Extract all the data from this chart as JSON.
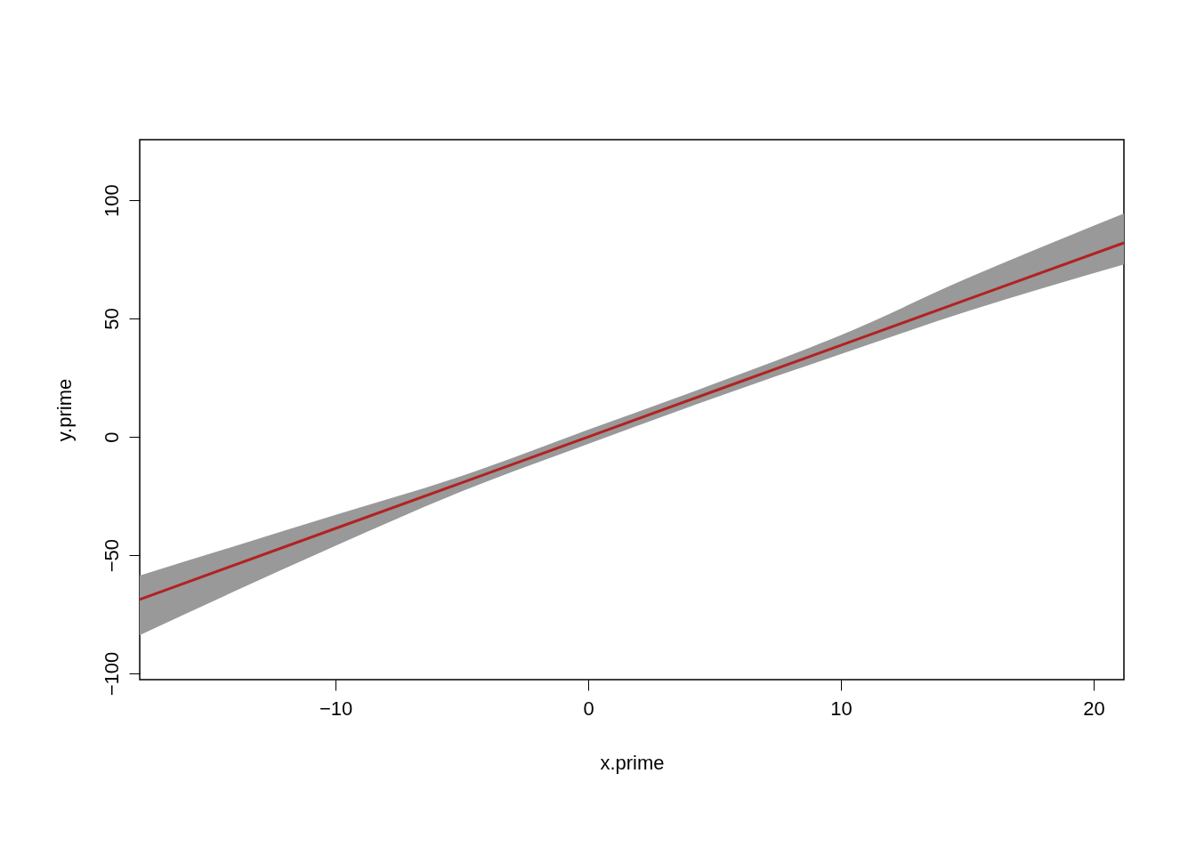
{
  "chart_data": {
    "type": "line",
    "xlabel": "x.prime",
    "ylabel": "y.prime",
    "xlim": [
      -17.75,
      21.2
    ],
    "ylim": [
      -102.6,
      125.6
    ],
    "xticks": [
      -10,
      0,
      10,
      20
    ],
    "yticks": [
      -100,
      -50,
      0,
      50,
      100
    ],
    "x": [
      -17.75,
      -10,
      -5,
      0,
      5,
      10,
      15,
      21.2
    ],
    "series": [
      {
        "color": "#b22222",
        "values": [
          -68.7,
          -38.7,
          -19.4,
          0,
          19.4,
          38.7,
          58.1,
          82
        ],
        "lower": [
          -83.8,
          -46,
          -23,
          -3,
          16.5,
          35,
          53,
          72.9
        ],
        "upper": [
          -58.6,
          -33,
          -16.5,
          3,
          22.5,
          43,
          67,
          94.4
        ]
      }
    ],
    "grid": false,
    "marker": "none",
    "line_style": "solid"
  }
}
